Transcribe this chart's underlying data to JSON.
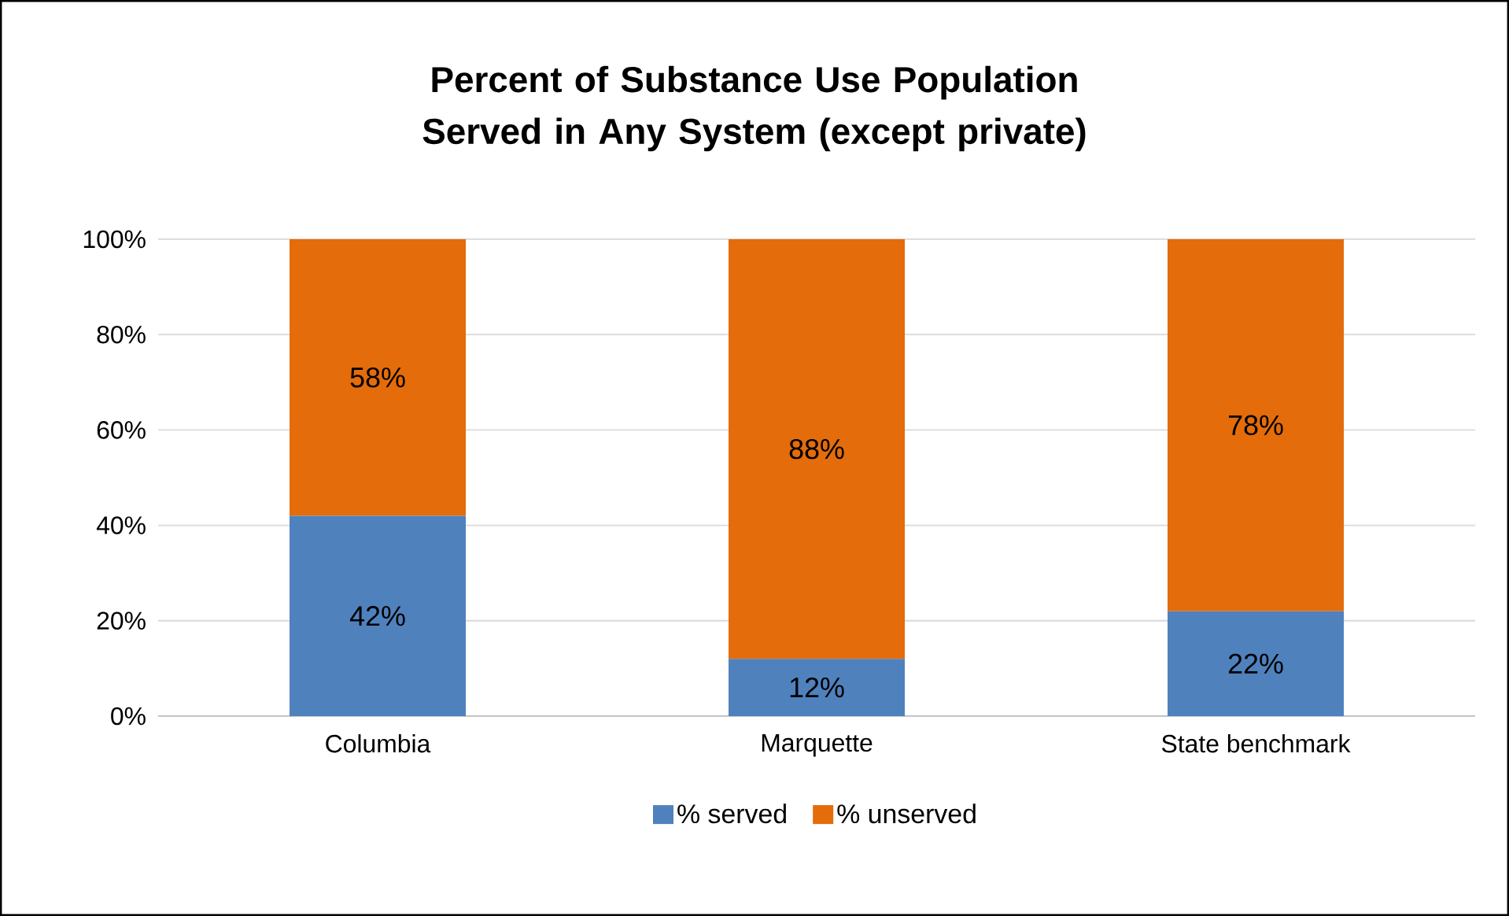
{
  "chart_data": {
    "type": "bar",
    "stacked": true,
    "title": "Percent of Substance Use Population Served in Any System (except private)",
    "categories": [
      "Columbia",
      "Marquette",
      "State benchmark"
    ],
    "series": [
      {
        "name": "% served",
        "color": "#4f81bd",
        "values": [
          42,
          12,
          22
        ],
        "value_labels": [
          "42%",
          "12%",
          "22%"
        ]
      },
      {
        "name": "% unserved",
        "color": "#e46c0a",
        "values": [
          58,
          88,
          78
        ],
        "value_labels": [
          "58%",
          "88%",
          "78%"
        ]
      }
    ],
    "ylim": [
      0,
      100
    ],
    "yticks": [
      {
        "value": 0,
        "label": "0%"
      },
      {
        "value": 20,
        "label": "20%"
      },
      {
        "value": 40,
        "label": "40%"
      },
      {
        "value": 60,
        "label": "60%"
      },
      {
        "value": 80,
        "label": "80%"
      },
      {
        "value": 100,
        "label": "100%"
      }
    ],
    "grid": "y",
    "legend": "bottom"
  }
}
